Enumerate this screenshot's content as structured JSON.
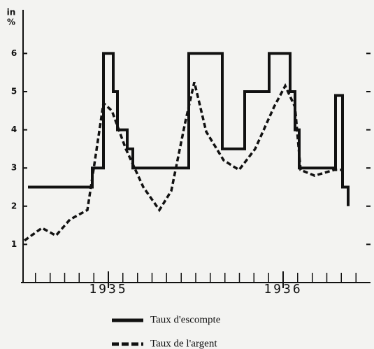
{
  "chart_data": {
    "type": "line",
    "ylabel": [
      "in",
      "%"
    ],
    "xlim": [
      1934.5,
      1936.5
    ],
    "ylim": [
      0,
      6.2
    ],
    "xticks": [
      1935,
      1936
    ],
    "x_minor_ticks": [
      1934.583,
      1934.667,
      1934.75,
      1934.833,
      1934.917,
      1935.083,
      1935.167,
      1935.25,
      1935.333,
      1935.417,
      1935.5,
      1935.583,
      1935.667,
      1935.75,
      1935.833,
      1935.917,
      1936.083,
      1936.167,
      1936.25,
      1936.333,
      1936.417
    ],
    "yticks": [
      1,
      2,
      3,
      4,
      5,
      6
    ],
    "series": [
      {
        "name": "Taux d'escompte",
        "color": "#111111",
        "style": "solid",
        "x": [
          1934.54,
          1934.908,
          1934.908,
          1934.972,
          1934.972,
          1935.028,
          1935.028,
          1935.052,
          1935.052,
          1935.108,
          1935.108,
          1935.14,
          1935.14,
          1935.46,
          1935.46,
          1935.652,
          1935.652,
          1935.78,
          1935.78,
          1935.92,
          1935.92,
          1936.04,
          1936.04,
          1936.068,
          1936.068,
          1936.092,
          1936.092,
          1936.3,
          1936.3,
          1936.34,
          1936.34,
          1936.372,
          1936.372
        ],
        "values": [
          2.5,
          2.5,
          3,
          3,
          6,
          6,
          5,
          5,
          4,
          4,
          3.5,
          3.5,
          3,
          3,
          6,
          6,
          3.5,
          3.5,
          5,
          5,
          6,
          6,
          5,
          5,
          4,
          4,
          3,
          3,
          4.9,
          4.9,
          2.5,
          2.5,
          2
        ]
      },
      {
        "name": "Taux de l'argent",
        "color": "#111111",
        "style": "dashed",
        "x": [
          1934.52,
          1934.62,
          1934.7,
          1934.78,
          1934.88,
          1934.92,
          1934.972,
          1935.02,
          1935.1,
          1935.2,
          1935.292,
          1935.36,
          1935.44,
          1935.492,
          1935.56,
          1935.66,
          1935.748,
          1935.84,
          1935.948,
          1936.012,
          1936.068,
          1936.1,
          1936.18,
          1936.292,
          1936.34
        ],
        "values": [
          1.1,
          1.43,
          1.23,
          1.65,
          1.9,
          3.1,
          4.7,
          4.5,
          3.5,
          2.5,
          1.9,
          2.4,
          4.2,
          5.25,
          3.95,
          3.2,
          2.95,
          3.5,
          4.6,
          5.15,
          4.6,
          2.95,
          2.8,
          2.95,
          2.95
        ]
      }
    ]
  }
}
